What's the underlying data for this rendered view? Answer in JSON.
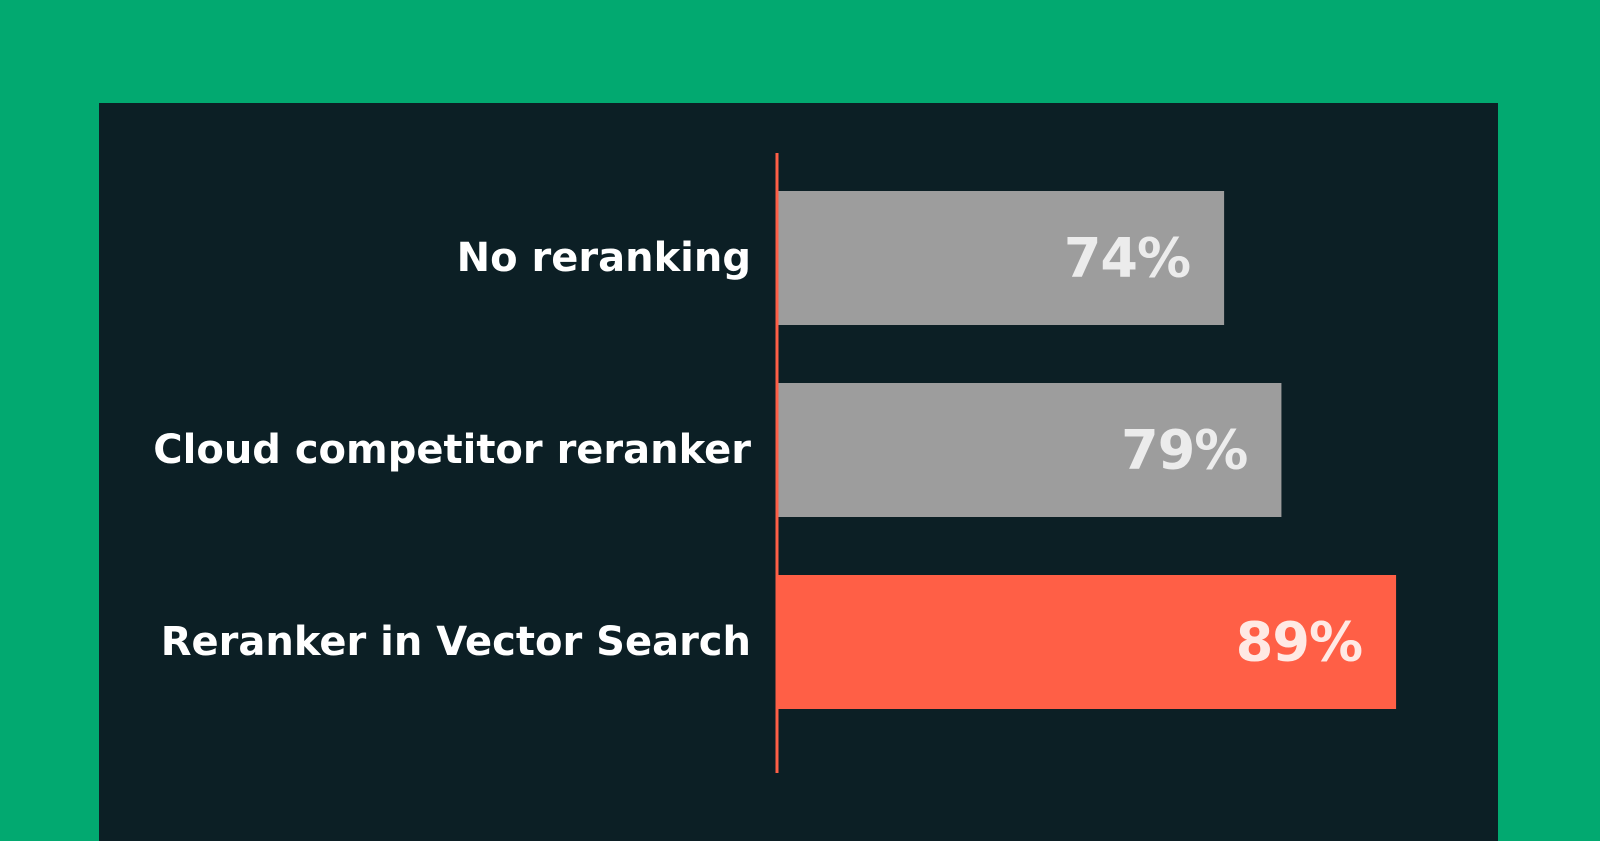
{
  "colors": {
    "frame_background": "#02a970",
    "panel_background": "#0c1f25",
    "baseline": "#ff5f46"
  },
  "chart_data": {
    "type": "bar",
    "orientation": "horizontal",
    "title": "",
    "xlabel": "",
    "ylabel": "",
    "categories": [
      "No reranking",
      "Cloud competitor reranker",
      "Reranker in Vector Search"
    ],
    "values": [
      74,
      79,
      89
    ],
    "value_labels": [
      "74%",
      "79%",
      "89%"
    ],
    "unit": "%",
    "xlim": [
      35,
      91
    ],
    "grid": false,
    "legend": "none",
    "bar_colors": [
      "#9d9d9d",
      "#9d9d9d",
      "#ff5f46"
    ],
    "value_label_colors": [
      "#ececec",
      "#ececec",
      "#ffe9e4"
    ]
  }
}
